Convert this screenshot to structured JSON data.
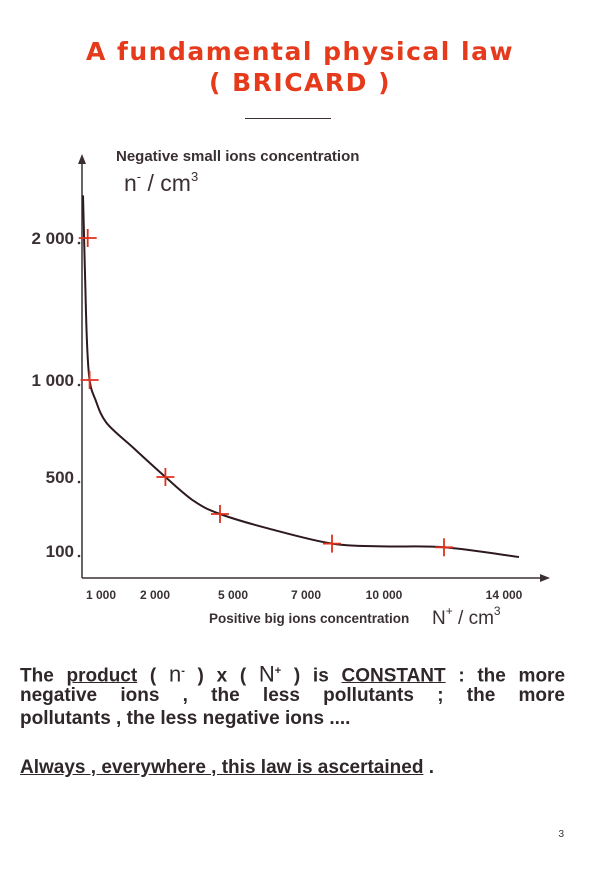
{
  "title_line1": "A fundamental physical law",
  "title_line2": "( BRICARD )",
  "chart_data": {
    "type": "line",
    "ylabel": "Negative small ions concentration",
    "y_unit_base": "n",
    "y_unit_sup": "-",
    "y_unit_rest": " / cm",
    "y_unit_exp": "3",
    "xlabel": "Positive big ions concentration",
    "x_unit_base": "N",
    "x_unit_sup": "+",
    "x_unit_rest": " / cm",
    "x_unit_exp": "3",
    "xticks": [
      {
        "v": 1000,
        "label": "1 000"
      },
      {
        "v": 2000,
        "label": "2 000"
      },
      {
        "v": 5000,
        "label": "5 000"
      },
      {
        "v": 7000,
        "label": "7 000"
      },
      {
        "v": 10000,
        "label": "10 000"
      },
      {
        "v": 14000,
        "label": "14 000"
      }
    ],
    "yticks": [
      {
        "v": 2000,
        "label": "2 000"
      },
      {
        "v": 1000,
        "label": "1 000"
      },
      {
        "v": 500,
        "label": "500"
      },
      {
        "v": 100,
        "label": "100"
      }
    ],
    "measured_points": [
      {
        "x": 300,
        "y": 2000
      },
      {
        "x": 400,
        "y": 1000
      },
      {
        "x": 2400,
        "y": 500
      },
      {
        "x": 4500,
        "y": 300
      },
      {
        "x": 8000,
        "y": 140
      },
      {
        "x": 12000,
        "y": 120
      }
    ],
    "curve": [
      {
        "x": 50,
        "y": 2300
      },
      {
        "x": 150,
        "y": 1800
      },
      {
        "x": 250,
        "y": 1300
      },
      {
        "x": 400,
        "y": 1000
      },
      {
        "x": 700,
        "y": 900
      },
      {
        "x": 1100,
        "y": 780
      },
      {
        "x": 1600,
        "y": 650
      },
      {
        "x": 2400,
        "y": 500
      },
      {
        "x": 3500,
        "y": 370
      },
      {
        "x": 4500,
        "y": 300
      },
      {
        "x": 6000,
        "y": 220
      },
      {
        "x": 8000,
        "y": 140
      },
      {
        "x": 10000,
        "y": 125
      },
      {
        "x": 12000,
        "y": 120
      },
      {
        "x": 14500,
        "y": 60
      }
    ],
    "grid": false,
    "colors": {
      "curve": "#2e1a1e",
      "markers": "#e0301c",
      "axis": "#3a3033"
    }
  },
  "para_t1": "The ",
  "para_u1": "product",
  "para_t2": " ( ",
  "para_n": "n",
  "para_nsup": "-",
  "para_t3": " ) x ( ",
  "para_N": "N",
  "para_Nsup": "+",
  "para_t4": " ) is ",
  "para_u2": "CONSTANT",
  "para_t5": " : the more",
  "para_line2": "negative ions , the less pollutants ; the more",
  "para_line3": "pollutants , the less negative ions ....",
  "last_line": "Always , everywhere , this law is ascertained",
  "last_end": " .",
  "page_number": "3"
}
